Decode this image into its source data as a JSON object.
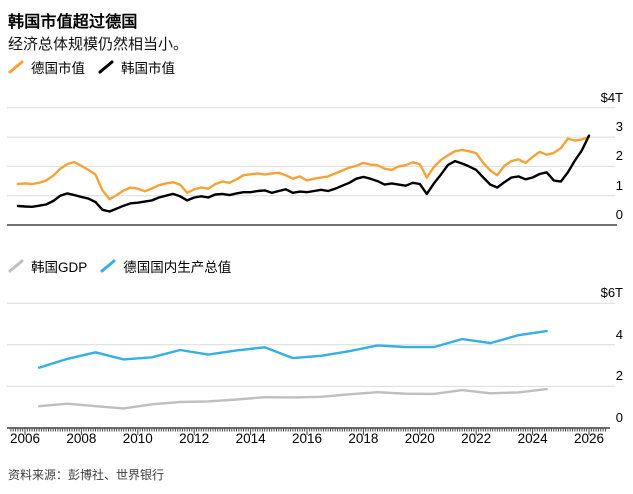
{
  "header": {
    "title": "韩国市值超过德国",
    "subtitle": "经济总体规模仍然相当小。"
  },
  "source": {
    "label": "资料来源：彭博社、世界银行"
  },
  "colors": {
    "germany_mcap": "#F7A237",
    "korea_mcap": "#000000",
    "korea_gdp": "#BFBFBF",
    "germany_gdp": "#35AFE5",
    "gridline": "#DCDCDC",
    "axis": "#444444"
  },
  "x_axis": {
    "year_labels": [
      "2006",
      "2008",
      "2010",
      "2012",
      "2014",
      "2016",
      "2018",
      "2020",
      "2022",
      "2024",
      "2026"
    ]
  },
  "chart_data": [
    {
      "type": "line",
      "name": "market-cap-chart",
      "unit": "$T",
      "ylim": [
        0,
        4
      ],
      "grid": "horizontal",
      "legend_position": "top",
      "y_ticks": [
        {
          "value": 4,
          "label": "$4T"
        },
        {
          "value": 3,
          "label": "3"
        },
        {
          "value": 2,
          "label": "2"
        },
        {
          "value": 1,
          "label": "1"
        },
        {
          "value": 0,
          "label": "0"
        }
      ],
      "legend": [
        {
          "label": "德国市值",
          "color_key": "germany_mcap"
        },
        {
          "label": "韩国市值",
          "color_key": "korea_mcap"
        }
      ],
      "series": [
        {
          "name": "德国市值",
          "color_key": "germany_mcap",
          "x_start": 2005.75,
          "x_step": 0.25,
          "values": [
            1.4,
            1.42,
            1.4,
            1.44,
            1.52,
            1.68,
            1.92,
            2.08,
            2.15,
            2.02,
            1.88,
            1.72,
            1.18,
            0.88,
            1.02,
            1.18,
            1.28,
            1.24,
            1.15,
            1.25,
            1.36,
            1.42,
            1.46,
            1.38,
            1.1,
            1.22,
            1.28,
            1.24,
            1.4,
            1.48,
            1.44,
            1.56,
            1.7,
            1.73,
            1.76,
            1.72,
            1.76,
            1.78,
            1.7,
            1.58,
            1.66,
            1.52,
            1.58,
            1.62,
            1.66,
            1.76,
            1.86,
            1.96,
            2.02,
            2.12,
            2.06,
            2.04,
            1.92,
            1.88,
            2.0,
            2.04,
            2.14,
            2.08,
            1.62,
            1.98,
            2.22,
            2.38,
            2.52,
            2.56,
            2.52,
            2.45,
            2.12,
            1.86,
            1.7,
            2.02,
            2.18,
            2.24,
            2.12,
            2.32,
            2.5,
            2.4,
            2.46,
            2.62,
            2.95,
            2.88,
            2.92,
            3.0
          ]
        },
        {
          "name": "韩国市值",
          "color_key": "korea_mcap",
          "x_start": 2005.75,
          "x_step": 0.25,
          "values": [
            0.65,
            0.63,
            0.62,
            0.66,
            0.7,
            0.82,
            1.0,
            1.08,
            1.02,
            0.96,
            0.9,
            0.78,
            0.52,
            0.46,
            0.56,
            0.66,
            0.74,
            0.76,
            0.8,
            0.84,
            0.94,
            1.0,
            1.06,
            0.98,
            0.84,
            0.94,
            0.98,
            0.94,
            1.04,
            1.06,
            1.02,
            1.08,
            1.12,
            1.12,
            1.16,
            1.18,
            1.1,
            1.16,
            1.22,
            1.1,
            1.14,
            1.12,
            1.16,
            1.2,
            1.16,
            1.24,
            1.34,
            1.44,
            1.58,
            1.64,
            1.58,
            1.5,
            1.38,
            1.42,
            1.38,
            1.34,
            1.44,
            1.4,
            1.06,
            1.42,
            1.72,
            2.05,
            2.18,
            2.1,
            2.0,
            1.88,
            1.62,
            1.38,
            1.28,
            1.46,
            1.62,
            1.66,
            1.56,
            1.62,
            1.74,
            1.8,
            1.52,
            1.48,
            1.8,
            2.2,
            2.55,
            3.05
          ]
        }
      ]
    },
    {
      "type": "line",
      "name": "gdp-chart",
      "unit": "$T",
      "ylim": [
        0,
        6
      ],
      "grid": "horizontal",
      "legend_position": "top",
      "y_ticks": [
        {
          "value": 6,
          "label": "$6T"
        },
        {
          "value": 4,
          "label": "4"
        },
        {
          "value": 2,
          "label": "2"
        },
        {
          "value": 0,
          "label": "0"
        }
      ],
      "legend": [
        {
          "label": "韩国GDP",
          "color_key": "korea_gdp"
        },
        {
          "label": "德国国内生产总值",
          "color_key": "germany_gdp"
        }
      ],
      "series": [
        {
          "name": "韩国GDP",
          "color_key": "korea_gdp",
          "x_start": 2006.5,
          "x_step": 1,
          "values": [
            1.05,
            1.17,
            1.05,
            0.94,
            1.14,
            1.25,
            1.28,
            1.37,
            1.48,
            1.47,
            1.5,
            1.62,
            1.72,
            1.65,
            1.64,
            1.82,
            1.67,
            1.71,
            1.87
          ]
        },
        {
          "name": "德国国内生产总值",
          "color_key": "germany_gdp",
          "x_start": 2006.5,
          "x_step": 1,
          "values": [
            2.9,
            3.32,
            3.64,
            3.3,
            3.4,
            3.75,
            3.53,
            3.73,
            3.88,
            3.36,
            3.47,
            3.69,
            3.97,
            3.89,
            3.89,
            4.28,
            4.08,
            4.46,
            4.66
          ]
        }
      ]
    }
  ]
}
